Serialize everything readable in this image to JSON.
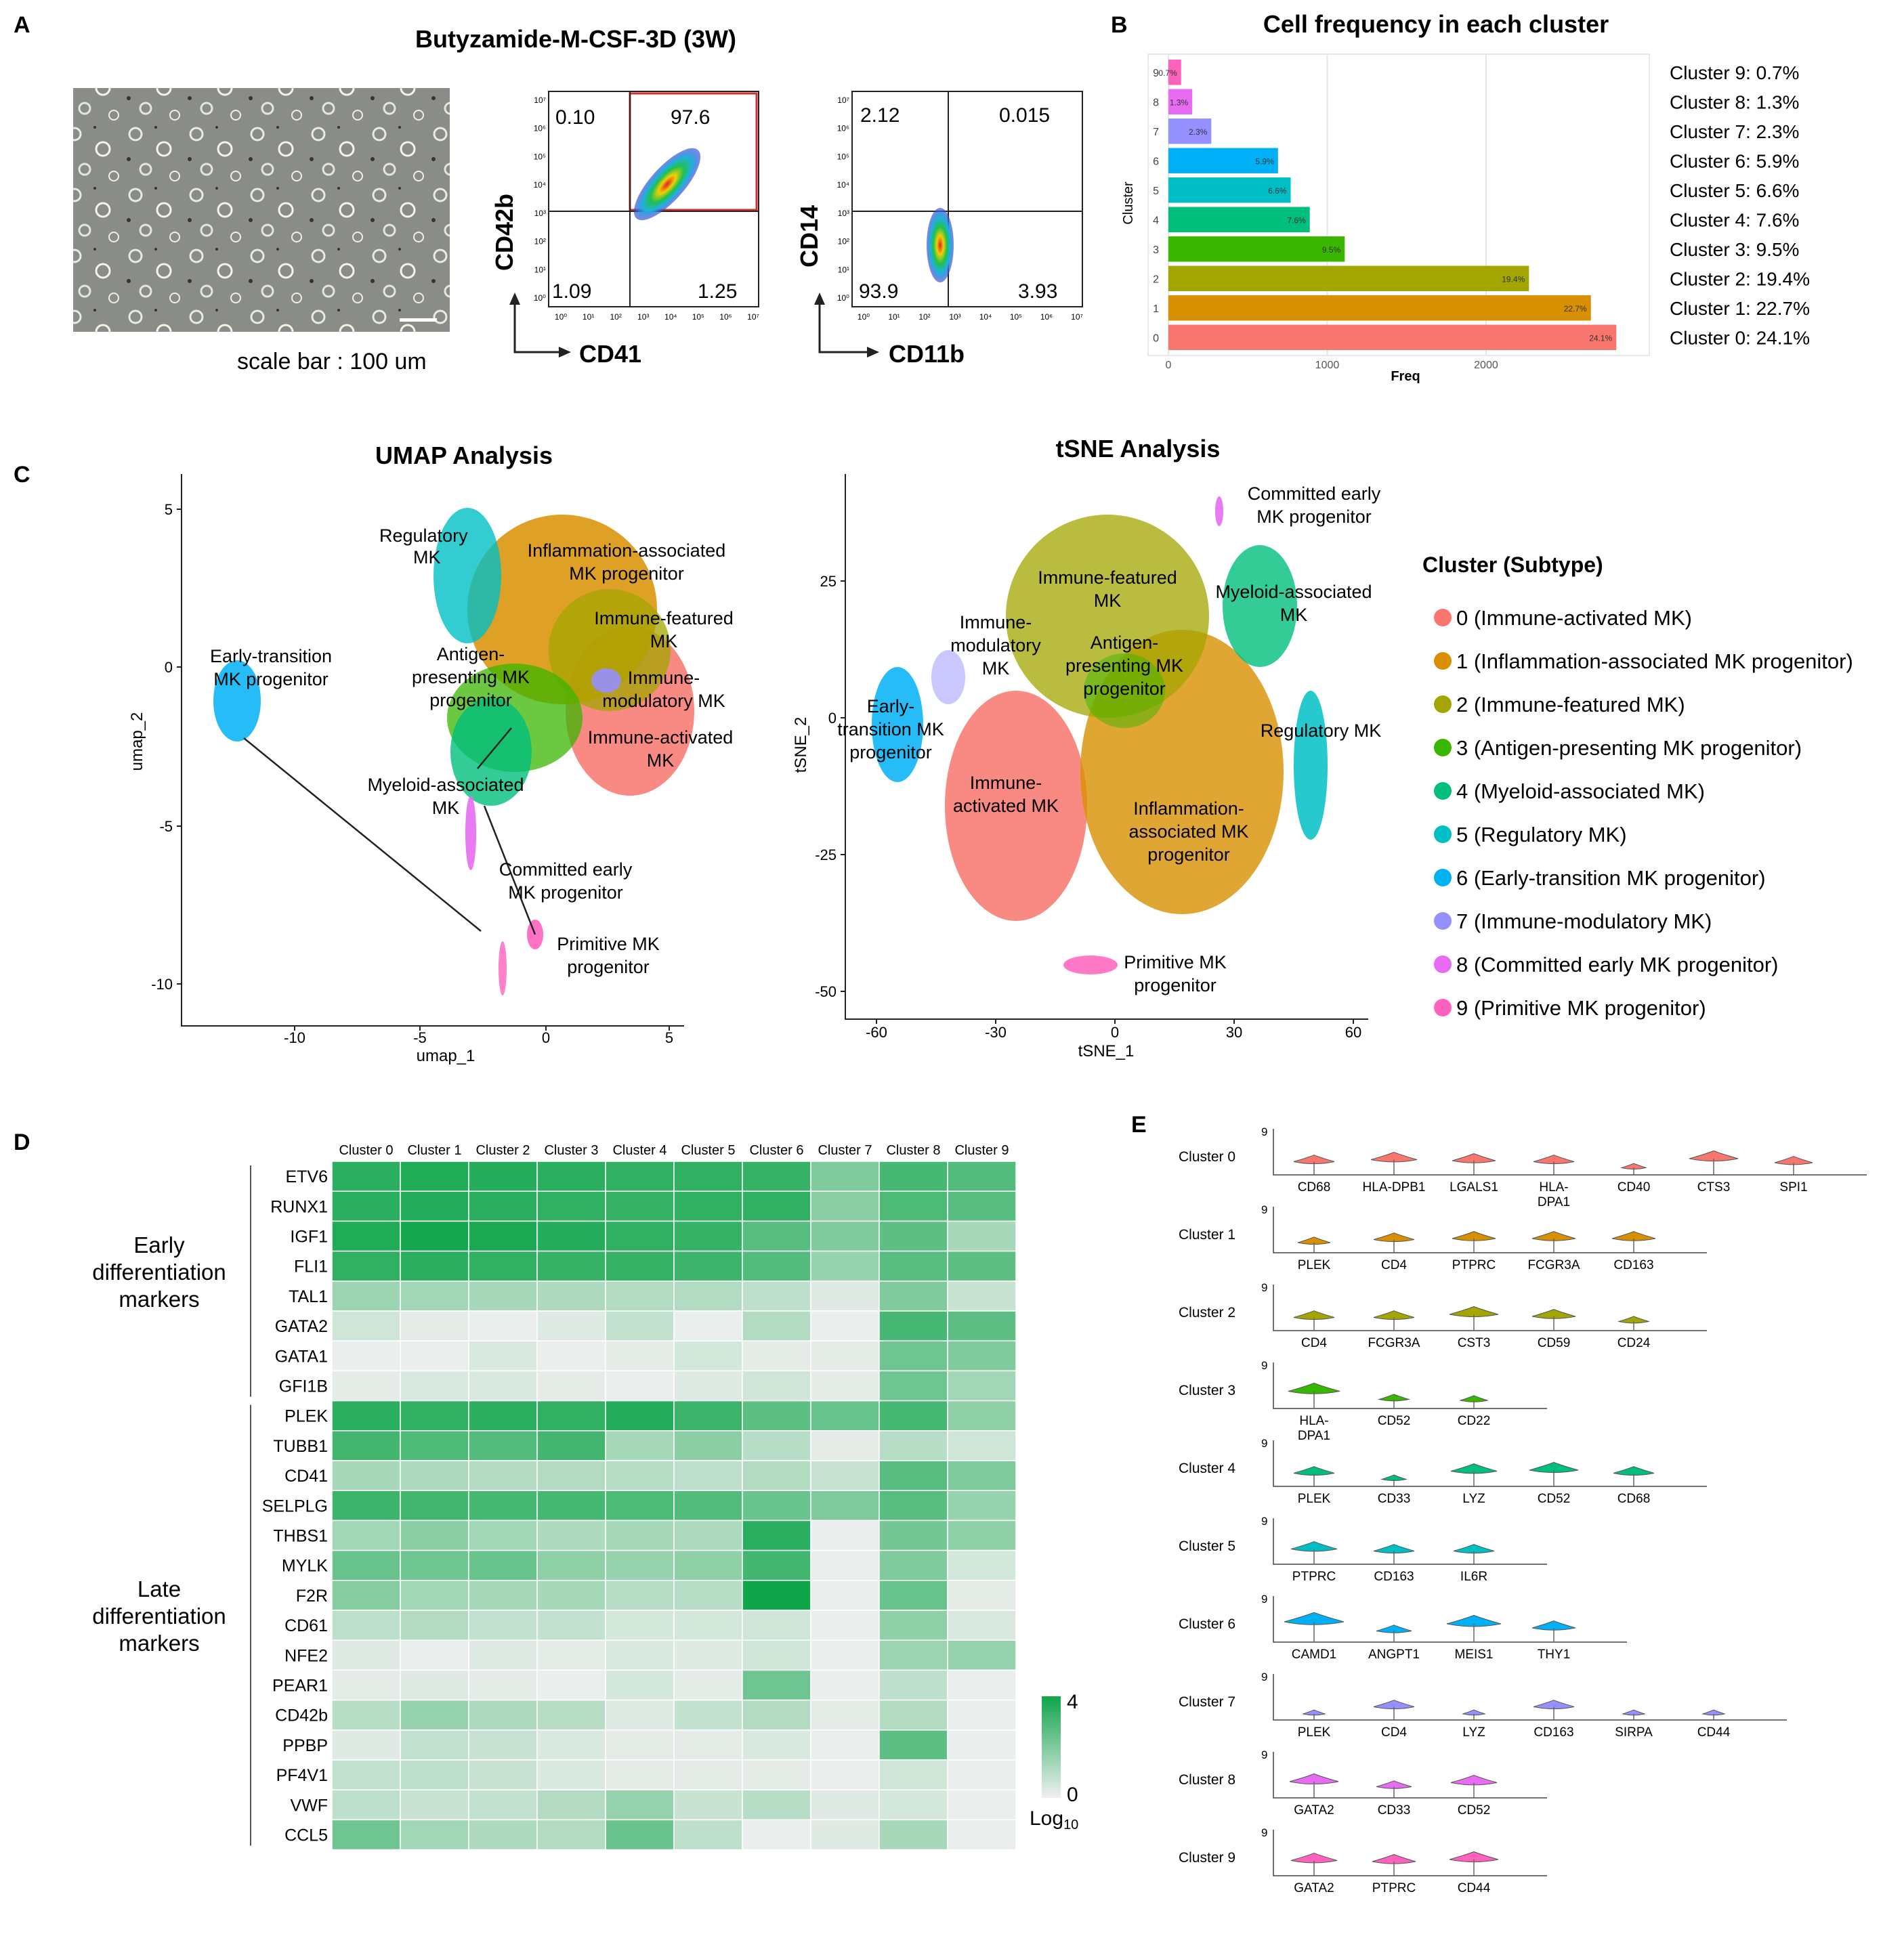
{
  "panelA": {
    "label": "A",
    "title": "Butyzamide-M-CSF-3D (3W)",
    "scale_caption": "scale bar : 100 um",
    "flow1": {
      "xlabel": "CD41",
      "ylabel": "CD42b",
      "quadrants": {
        "ul": "0.10",
        "ur": "97.6",
        "ll": "1.09",
        "lr": "1.25"
      },
      "ticks": [
        "10⁰",
        "10¹",
        "10²",
        "10³",
        "10⁴",
        "10⁵",
        "10⁶",
        "10⁷"
      ]
    },
    "flow2": {
      "xlabel": "CD11b",
      "ylabel": "CD14",
      "quadrants": {
        "ul": "2.12",
        "ur": "0.015",
        "ll": "93.9",
        "lr": "3.93"
      },
      "ticks": [
        "10⁰",
        "10¹",
        "10²",
        "10³",
        "10⁴",
        "10⁵",
        "10⁶",
        "10⁷"
      ]
    }
  },
  "panelB": {
    "label": "B",
    "chart_data": {
      "type": "bar",
      "title": "Cell frequency in each cluster",
      "xlabel": "Freq",
      "ylabel": "Cluster",
      "categories": [
        "0",
        "1",
        "2",
        "3",
        "4",
        "5",
        "6",
        "7",
        "8",
        "9"
      ],
      "values": [
        2820,
        2660,
        2270,
        1110,
        890,
        770,
        690,
        270,
        150,
        80
      ],
      "bar_labels": [
        "24.1%",
        "22.7%",
        "19.4%",
        "9.5%",
        "7.6%",
        "6.6%",
        "5.9%",
        "2.3%",
        "1.3%",
        "0.7%"
      ],
      "xticks": [
        0,
        1000,
        2000
      ],
      "xlim": [
        0,
        2900
      ],
      "colors": [
        "#F8766D",
        "#D89000",
        "#A3A500",
        "#39B600",
        "#00BF7D",
        "#00BFC4",
        "#00B0F6",
        "#9590FF",
        "#E76BF3",
        "#FF62BC"
      ],
      "side_labels": [
        "Cluster 9: 0.7%",
        "Cluster 8: 1.3%",
        "Cluster 7: 2.3%",
        "Cluster 6: 5.9%",
        "Cluster 5: 6.6%",
        "Cluster 4: 7.6%",
        "Cluster 3: 9.5%",
        "Cluster 2: 19.4%",
        "Cluster 1: 22.7%",
        "Cluster 0: 24.1%"
      ]
    }
  },
  "panelC": {
    "label": "C",
    "umap": {
      "title": "UMAP Analysis",
      "xlabel": "umap_1",
      "ylabel": "umap_2",
      "xticks": [
        "-10",
        "-5",
        "0",
        "5"
      ],
      "yticks": [
        "5",
        "0",
        "-5",
        "-10"
      ],
      "labels": {
        "regulatory": "Regulatory MK",
        "inflammation": "Inflammation-associated MK progenitor",
        "immune_featured": "Immune-featured MK",
        "early_transition": "Early-transition MK progenitor",
        "antigen": "Antigen-presenting MK progenitor",
        "immune_modulatory": "Immune-modulatory MK",
        "immune_activated": "Immune-activated MK",
        "myeloid": "Myeloid-associated MK",
        "committed": "Committed early MK progenitor",
        "primitive": "Primitive MK progenitor"
      }
    },
    "tsne": {
      "title": "tSNE Analysis",
      "xlabel": "tSNE_1",
      "ylabel": "tSNE_2",
      "xticks": [
        "-60",
        "-30",
        "0",
        "30",
        "60"
      ],
      "yticks": [
        "25",
        "0",
        "-25",
        "-50"
      ],
      "labels": {
        "committed": "Committed early MK progenitor",
        "immune_featured": "Immune-featured MK",
        "myeloid": "Myeloid-associated MK",
        "immune_modulatory": "Immune-modulatory MK",
        "antigen": "Antigen-presenting MK progenitor",
        "early_transition": "Early-transition MK progenitor",
        "regulatory": "Regulatory MK",
        "immune_activated": "Immune-activated MK",
        "inflammation": "Inflammation-associated MK progenitor",
        "primitive": "Primitive MK progenitor"
      }
    },
    "legend": {
      "title": "Cluster (Subtype)",
      "items": [
        {
          "label": "0 (Immune-activated MK)",
          "color": "#F8766D"
        },
        {
          "label": "1 (Inflammation-associated MK progenitor)",
          "color": "#D89000"
        },
        {
          "label": "2 (Immune-featured MK)",
          "color": "#A3A500"
        },
        {
          "label": "3 (Antigen-presenting MK progenitor)",
          "color": "#39B600"
        },
        {
          "label": "4 (Myeloid-associated MK)",
          "color": "#00BF7D"
        },
        {
          "label": "5 (Regulatory MK)",
          "color": "#00BFC4"
        },
        {
          "label": "6 (Early-transition MK progenitor)",
          "color": "#00B0F6"
        },
        {
          "label": "7 (Immune-modulatory MK)",
          "color": "#9590FF"
        },
        {
          "label": "8 (Committed early MK progenitor)",
          "color": "#E76BF3"
        },
        {
          "label": "9 (Primitive MK progenitor)",
          "color": "#FF62BC"
        }
      ]
    }
  },
  "panelD": {
    "label": "D",
    "chart_data": {
      "type": "heatmap",
      "columns": [
        "Cluster 0",
        "Cluster 1",
        "Cluster 2",
        "Cluster 3",
        "Cluster 4",
        "Cluster 5",
        "Cluster 6",
        "Cluster 7",
        "Cluster 8",
        "Cluster 9"
      ],
      "rows": [
        "ETV6",
        "RUNX1",
        "IGF1",
        "FLI1",
        "TAL1",
        "GATA2",
        "GATA1",
        "GFI1B",
        "PLEK",
        "TUBB1",
        "CD41",
        "SELPLG",
        "THBS1",
        "MYLK",
        "F2R",
        "CD61",
        "NFE2",
        "PEAR1",
        "CD42b",
        "PPBP",
        "PF4V1",
        "VWF",
        "CCL5"
      ],
      "values": [
        [
          3.5,
          3.7,
          3.6,
          3.5,
          3.4,
          3.4,
          3.3,
          2.0,
          3.0,
          2.8
        ],
        [
          3.5,
          3.6,
          3.5,
          3.4,
          3.3,
          3.4,
          3.4,
          1.8,
          2.9,
          2.7
        ],
        [
          3.7,
          3.9,
          3.8,
          3.6,
          3.4,
          3.3,
          2.7,
          2.0,
          2.6,
          1.3
        ],
        [
          3.4,
          3.5,
          3.4,
          3.3,
          3.3,
          3.2,
          2.8,
          1.6,
          2.7,
          2.6
        ],
        [
          1.5,
          1.4,
          1.3,
          1.2,
          1.1,
          1.1,
          0.9,
          0.3,
          2.0,
          0.7
        ],
        [
          0.6,
          0.2,
          0.1,
          0.3,
          0.8,
          0.1,
          1.1,
          0.1,
          3.0,
          2.6
        ],
        [
          0.1,
          0.1,
          0.4,
          0.1,
          0.2,
          0.5,
          0.2,
          0.2,
          2.3,
          2.0
        ],
        [
          0.2,
          0.4,
          0.4,
          0.2,
          0.1,
          0.3,
          0.6,
          0.2,
          2.3,
          1.4
        ],
        [
          3.5,
          3.4,
          3.5,
          3.4,
          3.6,
          3.2,
          2.6,
          2.4,
          3.0,
          1.7
        ],
        [
          3.1,
          2.9,
          2.8,
          3.1,
          1.3,
          1.8,
          1.0,
          0.2,
          1.0,
          0.6
        ],
        [
          1.3,
          1.2,
          1.1,
          1.1,
          1.0,
          0.9,
          1.1,
          0.7,
          2.7,
          2.0
        ],
        [
          3.2,
          3.1,
          3.0,
          3.0,
          2.9,
          2.8,
          2.4,
          2.0,
          2.7,
          1.6
        ],
        [
          1.4,
          1.8,
          1.4,
          1.2,
          1.3,
          1.2,
          3.5,
          0.1,
          2.2,
          1.7
        ],
        [
          2.4,
          2.3,
          2.4,
          1.7,
          1.6,
          1.7,
          3.1,
          0.1,
          2.0,
          0.5
        ],
        [
          1.9,
          1.4,
          1.3,
          1.3,
          1.0,
          1.0,
          4.0,
          0.1,
          2.4,
          0.2
        ],
        [
          0.9,
          1.1,
          0.8,
          0.8,
          0.5,
          0.5,
          0.6,
          0.1,
          1.7,
          0.4
        ],
        [
          0.3,
          0.1,
          0.3,
          0.2,
          0.4,
          0.3,
          0.6,
          0.1,
          1.5,
          1.6
        ],
        [
          0.2,
          0.3,
          0.2,
          0.1,
          0.5,
          0.2,
          2.3,
          0.1,
          0.9,
          0.1
        ],
        [
          1.0,
          1.6,
          1.2,
          1.0,
          0.3,
          0.8,
          1.1,
          0.2,
          1.1,
          0.1
        ],
        [
          0.3,
          0.8,
          0.7,
          0.4,
          0.2,
          0.2,
          0.4,
          0.1,
          2.6,
          0.1
        ],
        [
          0.8,
          0.9,
          0.7,
          0.4,
          0.2,
          0.2,
          0.2,
          0.1,
          0.6,
          0.1
        ],
        [
          0.9,
          0.7,
          0.8,
          1.1,
          1.6,
          0.7,
          1.0,
          0.3,
          0.5,
          0.1
        ],
        [
          2.3,
          1.4,
          1.2,
          1.1,
          2.4,
          0.9,
          0.1,
          0.3,
          1.3,
          0.1
        ]
      ],
      "group_labels": [
        {
          "text": [
            "Early",
            "differentiation",
            "markers"
          ],
          "rows": [
            0,
            7
          ]
        },
        {
          "text": [
            "Late",
            "differentiation",
            "markers"
          ],
          "rows": [
            8,
            22
          ]
        }
      ],
      "scale": {
        "min_label": "0",
        "max_label": "4",
        "title": "Log",
        "title_sub": "10",
        "vmin": 0,
        "vmax": 4,
        "low_color": "#f0f0f0",
        "high_color": "#0fa54a"
      }
    }
  },
  "panelE": {
    "label": "E",
    "max_label": "9",
    "clusters": [
      {
        "name": "Cluster 0",
        "color": "#F8766D",
        "genes": [
          "CD68",
          "HLA-DPB1",
          "LGALS1",
          "HLA-DPA1",
          "CD40",
          "CTS3",
          "SPI1"
        ],
        "levels": [
          0.45,
          0.55,
          0.5,
          0.45,
          0.15,
          0.6,
          0.4
        ]
      },
      {
        "name": "Cluster 1",
        "color": "#D89000",
        "genes": [
          "PLEK",
          "CD4",
          "PTPRC",
          "FCGR3A",
          "CD163"
        ],
        "levels": [
          0.3,
          0.45,
          0.5,
          0.5,
          0.5
        ]
      },
      {
        "name": "Cluster 2",
        "color": "#A3A500",
        "genes": [
          "CD4",
          "FCGR3A",
          "CST3",
          "CD59",
          "CD24"
        ],
        "levels": [
          0.45,
          0.45,
          0.6,
          0.5,
          0.25
        ]
      },
      {
        "name": "Cluster 3",
        "color": "#39B600",
        "genes": [
          "HLA-DPA1",
          "CD52",
          "CD22"
        ],
        "levels": [
          0.65,
          0.25,
          0.2
        ]
      },
      {
        "name": "Cluster 4",
        "color": "#00BF7D",
        "genes": [
          "PLEK",
          "CD33",
          "LYZ",
          "CD52",
          "CD68"
        ],
        "levels": [
          0.45,
          0.15,
          0.55,
          0.6,
          0.45
        ]
      },
      {
        "name": "Cluster 5",
        "color": "#00BFC4",
        "genes": [
          "PTPRC",
          "CD163",
          "IL6R"
        ],
        "levels": [
          0.55,
          0.45,
          0.45
        ]
      },
      {
        "name": "Cluster 6",
        "color": "#00B0F6",
        "genes": [
          "CAMD1",
          "ANGPT1",
          "MEIS1",
          "THY1"
        ],
        "levels": [
          0.8,
          0.35,
          0.7,
          0.5
        ]
      },
      {
        "name": "Cluster 7",
        "color": "#9590FF",
        "genes": [
          "PLEK",
          "CD4",
          "LYZ",
          "CD163",
          "SIRPA",
          "CD44"
        ],
        "levels": [
          0.1,
          0.45,
          0.1,
          0.45,
          0.1,
          0.1
        ]
      },
      {
        "name": "Cluster 8",
        "color": "#E76BF3",
        "genes": [
          "GATA2",
          "CD33",
          "CD52"
        ],
        "levels": [
          0.6,
          0.35,
          0.55
        ]
      },
      {
        "name": "Cluster 9",
        "color": "#FF62BC",
        "genes": [
          "GATA2",
          "PTPRC",
          "CD44"
        ],
        "levels": [
          0.55,
          0.5,
          0.6
        ]
      }
    ]
  }
}
